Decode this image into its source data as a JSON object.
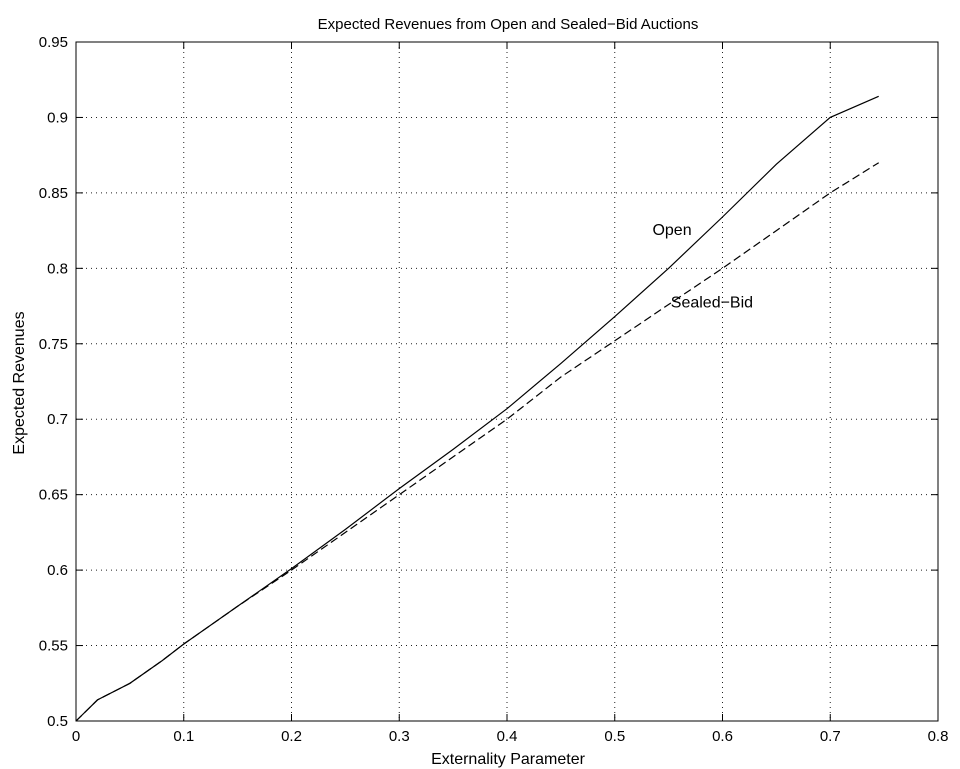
{
  "chart_data": {
    "type": "line",
    "title": "Expected Revenues from Open and Sealed−Bid Auctions",
    "xlabel": "Externality Parameter",
    "ylabel": "Expected Revenues",
    "xlim": [
      0,
      0.8
    ],
    "ylim": [
      0.5,
      0.95
    ],
    "grid": true,
    "xticks": [
      0,
      0.1,
      0.2,
      0.3,
      0.4,
      0.5,
      0.6,
      0.7,
      0.8
    ],
    "xtick_labels": [
      "0",
      "0.1",
      "0.2",
      "0.3",
      "0.4",
      "0.5",
      "0.6",
      "0.7",
      "0.8"
    ],
    "yticks": [
      0.5,
      0.55,
      0.6,
      0.65,
      0.7,
      0.75,
      0.8,
      0.85,
      0.9,
      0.95
    ],
    "ytick_labels": [
      "0.5",
      "0.55",
      "0.6",
      "0.65",
      "0.7",
      "0.75",
      "0.8",
      "0.85",
      "0.9",
      "0.95"
    ],
    "series": [
      {
        "name": "Open",
        "style": "solid",
        "color": "#000000",
        "x": [
          0,
          0.02,
          0.05,
          0.08,
          0.1,
          0.15,
          0.2,
          0.25,
          0.3,
          0.35,
          0.4,
          0.45,
          0.5,
          0.55,
          0.6,
          0.65,
          0.7,
          0.745
        ],
        "y": [
          0.5,
          0.514,
          0.525,
          0.54,
          0.551,
          0.576,
          0.601,
          0.627,
          0.654,
          0.68,
          0.707,
          0.737,
          0.768,
          0.8,
          0.834,
          0.869,
          0.9,
          0.914
        ]
      },
      {
        "name": "Sealed−Bid",
        "style": "dashed",
        "color": "#000000",
        "x": [
          0,
          0.02,
          0.05,
          0.08,
          0.1,
          0.15,
          0.2,
          0.25,
          0.3,
          0.35,
          0.4,
          0.45,
          0.5,
          0.55,
          0.6,
          0.65,
          0.7,
          0.745
        ],
        "y": [
          0.5,
          0.514,
          0.525,
          0.54,
          0.551,
          0.576,
          0.6,
          0.625,
          0.65,
          0.675,
          0.7,
          0.728,
          0.752,
          0.776,
          0.8,
          0.825,
          0.85,
          0.87
        ]
      }
    ],
    "annotations": [
      {
        "text": "Open",
        "x": 0.535,
        "y": 0.822
      },
      {
        "text": "Sealed−Bid",
        "x": 0.552,
        "y": 0.774
      }
    ]
  }
}
